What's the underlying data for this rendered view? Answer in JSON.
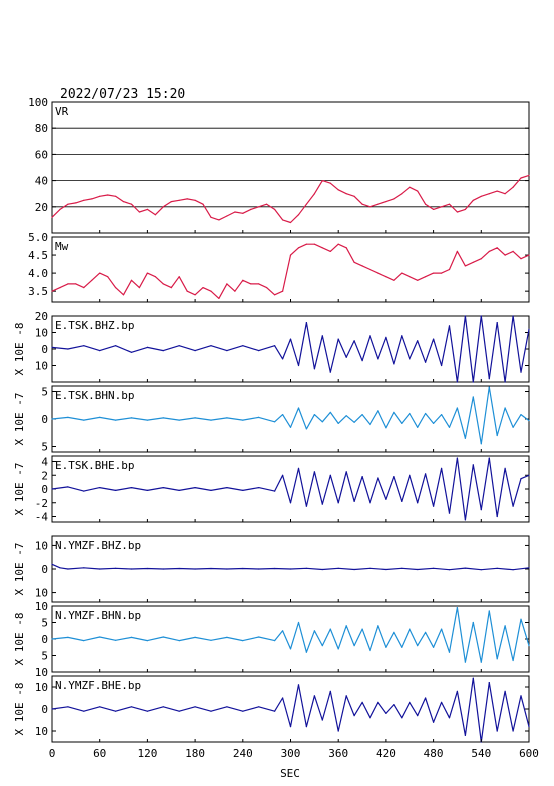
{
  "header": {
    "datetime": "2022/07/23 15:20"
  },
  "x_axis": {
    "label": "SEC",
    "range": [
      0,
      600
    ],
    "ticks": [
      0,
      60,
      120,
      180,
      240,
      300,
      360,
      420,
      480,
      540,
      600
    ]
  },
  "colors": {
    "vr": "#d81b48",
    "mw": "#d81b48",
    "dark_trace": "#12129a",
    "light_trace": "#1e8fd6"
  },
  "chart_data": [
    {
      "type": "line",
      "name": "vr-panel",
      "label": "VR",
      "ylim": [
        0,
        100
      ],
      "yticks": [
        20,
        40,
        60,
        80,
        100
      ],
      "grid": true,
      "series": [
        {
          "x": [
            0,
            10,
            20,
            30,
            40,
            50,
            60,
            70,
            80,
            90,
            100,
            110,
            120,
            130,
            140,
            150,
            160,
            170,
            180,
            190,
            200,
            210,
            220,
            230,
            240,
            250,
            260,
            270,
            280,
            290,
            300,
            310,
            320,
            330,
            340,
            350,
            360,
            370,
            380,
            390,
            400,
            410,
            420,
            430,
            440,
            450,
            460,
            470,
            480,
            490,
            500,
            510,
            520,
            530,
            540,
            550,
            560,
            570,
            580,
            590,
            600
          ],
          "y": [
            12,
            18,
            22,
            23,
            25,
            26,
            28,
            29,
            28,
            24,
            22,
            16,
            18,
            14,
            20,
            24,
            25,
            26,
            25,
            22,
            12,
            10,
            13,
            16,
            15,
            18,
            20,
            22,
            18,
            10,
            8,
            14,
            22,
            30,
            40,
            38,
            33,
            30,
            28,
            22,
            20,
            22,
            24,
            26,
            30,
            35,
            32,
            22,
            18,
            20,
            22,
            16,
            18,
            25,
            28,
            30,
            32,
            30,
            35,
            42,
            44
          ]
        }
      ]
    },
    {
      "type": "line",
      "name": "mw-panel",
      "label": "Mw",
      "ylim": [
        3.2,
        5.0
      ],
      "yticks": [
        3.5,
        4.0,
        4.5,
        5.0
      ],
      "ytick_labels": [
        "3.5",
        "4.0",
        "4.5",
        "5.0"
      ],
      "series": [
        {
          "x": [
            0,
            10,
            20,
            30,
            40,
            50,
            60,
            70,
            80,
            90,
            100,
            110,
            120,
            130,
            140,
            150,
            160,
            170,
            180,
            190,
            200,
            210,
            220,
            230,
            240,
            250,
            260,
            270,
            280,
            290,
            300,
            310,
            320,
            330,
            340,
            350,
            360,
            370,
            380,
            390,
            400,
            410,
            420,
            430,
            440,
            450,
            460,
            470,
            480,
            490,
            500,
            510,
            520,
            530,
            540,
            550,
            560,
            570,
            580,
            590,
            600
          ],
          "y": [
            3.5,
            3.6,
            3.7,
            3.7,
            3.6,
            3.8,
            4.0,
            3.9,
            3.6,
            3.4,
            3.8,
            3.6,
            4.0,
            3.9,
            3.7,
            3.6,
            3.9,
            3.5,
            3.4,
            3.6,
            3.5,
            3.3,
            3.7,
            3.5,
            3.8,
            3.7,
            3.7,
            3.6,
            3.4,
            3.5,
            4.5,
            4.7,
            4.8,
            4.8,
            4.7,
            4.6,
            4.8,
            4.7,
            4.3,
            4.2,
            4.1,
            4.0,
            3.9,
            3.8,
            4.0,
            3.9,
            3.8,
            3.9,
            4.0,
            4.0,
            4.1,
            4.6,
            4.2,
            4.3,
            4.4,
            4.6,
            4.7,
            4.5,
            4.6,
            4.4,
            4.5
          ]
        }
      ]
    },
    {
      "type": "line",
      "name": "wave-1",
      "label": "E.TSK.BHZ.bp",
      "ylabel": "X 10E -8",
      "ylim": [
        -20,
        20
      ],
      "yticks": [
        -10,
        0,
        10,
        20
      ],
      "ytick_labels": [
        "10",
        "0",
        "10",
        "20"
      ],
      "color": "dark",
      "series": [
        {
          "x": [
            0,
            20,
            40,
            60,
            80,
            100,
            120,
            140,
            160,
            180,
            200,
            220,
            240,
            260,
            280,
            290,
            300,
            310,
            320,
            330,
            340,
            350,
            360,
            370,
            380,
            390,
            400,
            410,
            420,
            430,
            440,
            450,
            460,
            470,
            480,
            490,
            500,
            510,
            520,
            530,
            540,
            550,
            560,
            570,
            580,
            590,
            600
          ],
          "y": [
            1,
            0,
            2,
            -1,
            2,
            -2,
            1,
            -1,
            2,
            -1,
            2,
            -1,
            2,
            -1,
            2,
            -6,
            6,
            -10,
            16,
            -12,
            8,
            -14,
            6,
            -5,
            5,
            -7,
            8,
            -6,
            7,
            -9,
            8,
            -6,
            5,
            -8,
            6,
            -10,
            14,
            -20,
            22,
            -24,
            20,
            -18,
            16,
            -22,
            20,
            -14,
            12
          ]
        }
      ]
    },
    {
      "type": "line",
      "name": "wave-2",
      "label": "E.TSK.BHN.bp",
      "ylabel": "X 10E -7",
      "ylim": [
        -6,
        6
      ],
      "yticks": [
        -5,
        0,
        5
      ],
      "ytick_labels": [
        "5",
        "0",
        "5"
      ],
      "color": "light",
      "series": [
        {
          "x": [
            0,
            20,
            40,
            60,
            80,
            100,
            120,
            140,
            160,
            180,
            200,
            220,
            240,
            260,
            280,
            290,
            300,
            310,
            320,
            330,
            340,
            350,
            360,
            370,
            380,
            390,
            400,
            410,
            420,
            430,
            440,
            450,
            460,
            470,
            480,
            490,
            500,
            510,
            520,
            530,
            540,
            550,
            560,
            570,
            580,
            590,
            600
          ],
          "y": [
            0,
            0.3,
            -0.2,
            0.3,
            -0.2,
            0.2,
            -0.2,
            0.2,
            -0.2,
            0.2,
            -0.2,
            0.2,
            -0.2,
            0.3,
            -0.5,
            0.8,
            -1.5,
            2.0,
            -1.8,
            0.8,
            -0.5,
            1.2,
            -0.8,
            0.6,
            -0.6,
            0.8,
            -1.0,
            1.5,
            -1.6,
            1.2,
            -0.8,
            1.0,
            -1.5,
            1.0,
            -0.8,
            0.8,
            -1.5,
            2.0,
            -3.5,
            4.0,
            -4.5,
            5.8,
            -3.0,
            2.0,
            -1.5,
            0.8,
            -0.3
          ]
        }
      ]
    },
    {
      "type": "line",
      "name": "wave-3",
      "label": "E.TSK.BHE.bp",
      "ylabel": "X 10E -7",
      "ylim": [
        -4.8,
        4.8
      ],
      "yticks": [
        -4,
        -2,
        0,
        2,
        4
      ],
      "ytick_labels": [
        "-4",
        "-2",
        "0",
        "2",
        "4"
      ],
      "color": "dark",
      "series": [
        {
          "x": [
            0,
            20,
            40,
            60,
            80,
            100,
            120,
            140,
            160,
            180,
            200,
            220,
            240,
            260,
            280,
            290,
            300,
            310,
            320,
            330,
            340,
            350,
            360,
            370,
            380,
            390,
            400,
            410,
            420,
            430,
            440,
            450,
            460,
            470,
            480,
            490,
            500,
            510,
            520,
            530,
            540,
            550,
            560,
            570,
            580,
            590,
            600
          ],
          "y": [
            0,
            0.3,
            -0.3,
            0.2,
            -0.2,
            0.2,
            -0.2,
            0.2,
            -0.2,
            0.2,
            -0.2,
            0.2,
            -0.2,
            0.2,
            -0.3,
            2.0,
            -2.0,
            3.0,
            -2.5,
            2.5,
            -2.2,
            2.0,
            -2.0,
            2.5,
            -1.8,
            1.8,
            -2.0,
            1.6,
            -1.5,
            1.8,
            -1.8,
            2.0,
            -2.0,
            2.2,
            -2.5,
            3.0,
            -3.5,
            4.5,
            -4.5,
            3.5,
            -3.0,
            4.5,
            -4.0,
            3.0,
            -2.5,
            1.5,
            2.0
          ]
        }
      ]
    },
    {
      "type": "line",
      "name": "wave-4",
      "label": "N.YMZF.BHZ.bp",
      "ylabel": "X 10E -7",
      "ylim": [
        -14,
        14
      ],
      "yticks": [
        -10,
        0,
        10
      ],
      "ytick_labels": [
        "10",
        "0",
        "10"
      ],
      "color": "dark",
      "series": [
        {
          "x": [
            0,
            10,
            20,
            40,
            60,
            80,
            100,
            120,
            140,
            160,
            180,
            200,
            220,
            240,
            260,
            280,
            300,
            320,
            340,
            360,
            380,
            400,
            420,
            440,
            460,
            480,
            500,
            520,
            540,
            560,
            580,
            600
          ],
          "y": [
            2,
            0.5,
            0,
            0.5,
            0,
            0.3,
            0,
            0.2,
            0,
            0.2,
            0,
            0.2,
            0,
            0.2,
            0,
            0.2,
            0,
            0.3,
            -0.2,
            0.3,
            -0.2,
            0.3,
            -0.2,
            0.3,
            -0.2,
            0.3,
            -0.3,
            0.4,
            -0.3,
            0.3,
            -0.3,
            0.5
          ]
        }
      ]
    },
    {
      "type": "line",
      "name": "wave-5",
      "label": "N.YMZF.BHN.bp",
      "ylabel": "X 10E -8",
      "ylim": [
        -10,
        10
      ],
      "yticks": [
        -10,
        -5,
        0,
        5,
        10
      ],
      "ytick_labels": [
        "10",
        "5",
        "0",
        "5",
        "10"
      ],
      "color": "light",
      "series": [
        {
          "x": [
            0,
            20,
            40,
            60,
            80,
            100,
            120,
            140,
            160,
            180,
            200,
            220,
            240,
            260,
            280,
            290,
            300,
            310,
            320,
            330,
            340,
            350,
            360,
            370,
            380,
            390,
            400,
            410,
            420,
            430,
            440,
            450,
            460,
            470,
            480,
            490,
            500,
            510,
            520,
            530,
            540,
            550,
            560,
            570,
            580,
            590,
            600
          ],
          "y": [
            0,
            0.5,
            -0.5,
            0.6,
            -0.4,
            0.5,
            -0.5,
            0.6,
            -0.5,
            0.5,
            -0.4,
            0.5,
            -0.5,
            0.6,
            -0.5,
            2.5,
            -3.0,
            5.0,
            -4.0,
            2.5,
            -2.0,
            3.0,
            -3.0,
            4.0,
            -2.0,
            3.0,
            -3.5,
            4.0,
            -2.5,
            2.0,
            -2.5,
            3.0,
            -2.0,
            2.0,
            -2.5,
            3.0,
            -4.0,
            9.5,
            -7.0,
            5.0,
            -7.0,
            8.5,
            -6.0,
            4.0,
            -6.5,
            6.0,
            -2.0
          ]
        }
      ]
    },
    {
      "type": "line",
      "name": "wave-6",
      "label": "N.YMZF.BHE.bp",
      "ylabel": "X 10E -8",
      "ylim": [
        -15,
        15
      ],
      "yticks": [
        -10,
        0,
        10
      ],
      "ytick_labels": [
        "10",
        "0",
        "10"
      ],
      "color": "dark",
      "series": [
        {
          "x": [
            0,
            20,
            40,
            60,
            80,
            100,
            120,
            140,
            160,
            180,
            200,
            220,
            240,
            260,
            280,
            290,
            300,
            310,
            320,
            330,
            340,
            350,
            360,
            370,
            380,
            390,
            400,
            410,
            420,
            430,
            440,
            450,
            460,
            470,
            480,
            490,
            500,
            510,
            520,
            530,
            540,
            550,
            560,
            570,
            580,
            590,
            600
          ],
          "y": [
            0,
            1,
            -1,
            1,
            -1,
            1,
            -1,
            1,
            -1,
            1,
            -1,
            1,
            -1,
            1,
            -1,
            5,
            -8,
            11,
            -8,
            6,
            -5,
            8,
            -10,
            6,
            -3,
            3,
            -4,
            3,
            -2,
            2,
            -4,
            3,
            -3,
            5,
            -6,
            3,
            -4,
            8,
            -12,
            14,
            -15,
            12,
            -10,
            8,
            -10,
            6,
            -8
          ]
        }
      ]
    }
  ]
}
